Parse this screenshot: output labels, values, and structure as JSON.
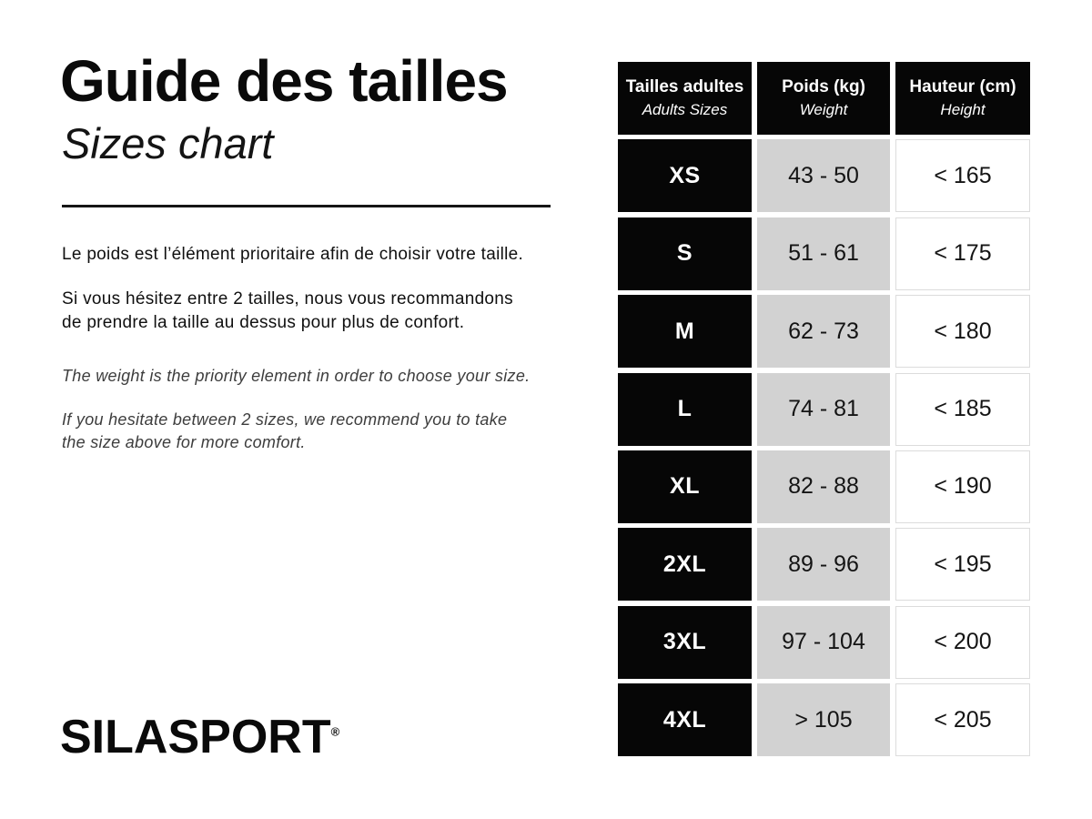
{
  "left": {
    "title_fr": "Guide des tailles",
    "title_en": "Sizes chart",
    "paragraphs_fr": [
      "Le poids est l’élément prioritaire afin de choisir votre taille.",
      "Si vous hésitez entre 2 tailles, nous vous recommandons\nde prendre la taille au dessus pour plus de confort."
    ],
    "paragraphs_en": [
      "The weight is the priority element in order to choose your size.",
      "If you hesitate between 2 sizes, we recommend you to take\nthe size above for more comfort."
    ],
    "brand": "SILASPORT",
    "brand_reg": "®"
  },
  "table": {
    "headers": [
      {
        "fr": "Tailles adultes",
        "en": "Adults Sizes"
      },
      {
        "fr": "Poids (kg)",
        "en": "Weight"
      },
      {
        "fr": "Hauteur (cm)",
        "en": "Height"
      }
    ],
    "rows": [
      {
        "size": "XS",
        "weight": "43 - 50",
        "height": "< 165"
      },
      {
        "size": "S",
        "weight": "51 - 61",
        "height": "< 175"
      },
      {
        "size": "M",
        "weight": "62 - 73",
        "height": "< 180"
      },
      {
        "size": "L",
        "weight": "74 - 81",
        "height": "< 185"
      },
      {
        "size": "XL",
        "weight": "82 - 88",
        "height": "< 190"
      },
      {
        "size": "2XL",
        "weight": "89 - 96",
        "height": "< 195"
      },
      {
        "size": "3XL",
        "weight": "97 - 104",
        "height": "< 200"
      },
      {
        "size": "4XL",
        "weight": "> 105",
        "height": "< 205"
      }
    ]
  },
  "colors": {
    "black": "#060606",
    "gray_cell": "#d2d2d2",
    "white_cell_border": "#dcdcdc"
  },
  "chart_data": {
    "type": "table",
    "title": "Guide des tailles / Sizes chart",
    "columns": [
      "Tailles adultes / Adults Sizes",
      "Poids (kg) / Weight",
      "Hauteur (cm) / Height"
    ],
    "rows": [
      [
        "XS",
        "43 - 50",
        "< 165"
      ],
      [
        "S",
        "51 - 61",
        "< 175"
      ],
      [
        "M",
        "62 - 73",
        "< 180"
      ],
      [
        "L",
        "74 - 81",
        "< 185"
      ],
      [
        "XL",
        "82 - 88",
        "< 190"
      ],
      [
        "2XL",
        "89 - 96",
        "< 195"
      ],
      [
        "3XL",
        "97 - 104",
        "< 200"
      ],
      [
        "4XL",
        "> 105",
        "< 205"
      ]
    ]
  }
}
